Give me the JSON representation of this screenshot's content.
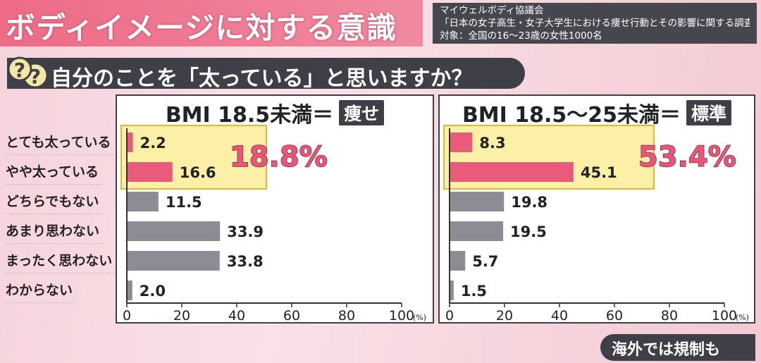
{
  "header": {
    "title": "ボディイメージに対する意識",
    "source_lines": [
      "マイウェルボディ協議会",
      "「日本の女子高生・女子大学生における痩せ行動とその影響に関する調査」",
      "対象：全国の16〜23歳の女性1000名"
    ]
  },
  "question": {
    "icon": "question-marks-icon",
    "text": "自分のことを「太っている」と思いますか？"
  },
  "categories": [
    "とても太っている",
    "やや太っている",
    "どちらでもない",
    "あまり思わない",
    "まったく思わない",
    "わからない"
  ],
  "colors": {
    "highlight_bar": "#e85b7a",
    "normal_bar": "#8c8c94",
    "highlight_box": "#fbf0a6",
    "highlight_border": "#e8b43a",
    "panel_bg": "#ffffff",
    "dark": "#3f3f48",
    "pink_number": "#e8577a"
  },
  "chart_data": [
    {
      "type": "bar",
      "orientation": "horizontal",
      "title": "BMI 18.5未満＝痩せ",
      "title_main": "BMI 18.5未満＝",
      "title_tag": "痩せ",
      "categories": [
        "とても太っている",
        "やや太っている",
        "どちらでもない",
        "あまり思わない",
        "まったく思わない",
        "わからない"
      ],
      "values": [
        2.2,
        16.6,
        11.5,
        33.9,
        33.8,
        2.0
      ],
      "value_labels": [
        "2.2",
        "16.6",
        "11.5",
        "33.9",
        "33.8",
        "2.0"
      ],
      "highlighted": [
        true,
        true,
        false,
        false,
        false,
        false
      ],
      "highlight_total": "18.8%",
      "xlim": [
        0,
        100
      ],
      "xticks": [
        "0",
        "20",
        "40",
        "60",
        "80",
        "100"
      ],
      "unit": "(%)",
      "grid": false
    },
    {
      "type": "bar",
      "orientation": "horizontal",
      "title": "BMI 18.5〜25未満＝標準",
      "title_main": "BMI 18.5〜25未満＝",
      "title_tag": "標準",
      "categories": [
        "とても太っている",
        "やや太っている",
        "どちらでもない",
        "あまり思わない",
        "まったく思わない",
        "わからない"
      ],
      "values": [
        8.3,
        45.1,
        19.8,
        19.5,
        5.7,
        1.5
      ],
      "value_labels": [
        "8.3",
        "45.1",
        "19.8",
        "19.5",
        "5.7",
        "1.5"
      ],
      "highlighted": [
        true,
        true,
        false,
        false,
        false,
        false
      ],
      "highlight_total": "53.4%",
      "xlim": [
        0,
        100
      ],
      "xticks": [
        "0",
        "20",
        "40",
        "60",
        "80",
        "100"
      ],
      "unit": "(%)",
      "grid": false
    }
  ],
  "footer": {
    "text": "海外では規制も"
  }
}
